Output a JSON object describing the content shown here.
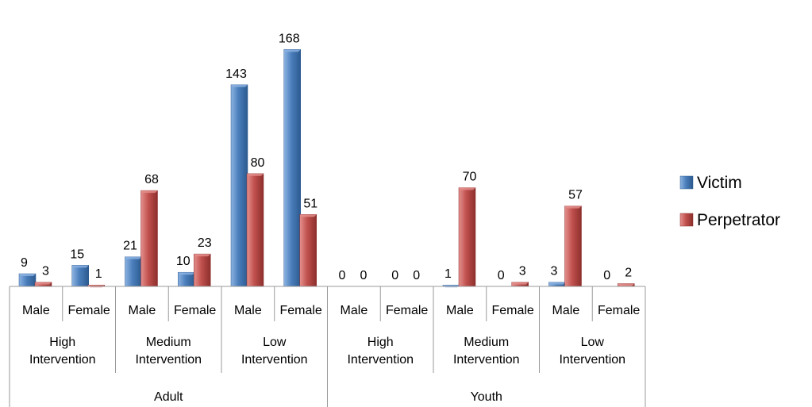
{
  "chart_data": {
    "type": "bar",
    "title": "",
    "xlabel": "",
    "ylabel": "",
    "ylim": [
      0,
      180
    ],
    "grid": false,
    "legend_position": "right",
    "categories": [
      {
        "sub": "Male",
        "level": [
          "High",
          "Intervention"
        ],
        "group": "Adult"
      },
      {
        "sub": "Female",
        "level": [
          "High",
          "Intervention"
        ],
        "group": "Adult"
      },
      {
        "sub": "Male",
        "level": [
          "Medium",
          "Intervention"
        ],
        "group": "Adult"
      },
      {
        "sub": "Female",
        "level": [
          "Medium",
          "Intervention"
        ],
        "group": "Adult"
      },
      {
        "sub": "Male",
        "level": [
          "Low",
          "Intervention"
        ],
        "group": "Adult"
      },
      {
        "sub": "Female",
        "level": [
          "Low",
          "Intervention"
        ],
        "group": "Adult"
      },
      {
        "sub": "Male",
        "level": [
          "High",
          "Intervention"
        ],
        "group": "Youth"
      },
      {
        "sub": "Female",
        "level": [
          "High",
          "Intervention"
        ],
        "group": "Youth"
      },
      {
        "sub": "Male",
        "level": [
          "Medium",
          "Intervention"
        ],
        "group": "Youth"
      },
      {
        "sub": "Female",
        "level": [
          "Medium",
          "Intervention"
        ],
        "group": "Youth"
      },
      {
        "sub": "Male",
        "level": [
          "Low",
          "Intervention"
        ],
        "group": "Youth"
      },
      {
        "sub": "Female",
        "level": [
          "Low",
          "Intervention"
        ],
        "group": "Youth"
      }
    ],
    "levels": [
      {
        "lines": [
          "High",
          "Intervention"
        ]
      },
      {
        "lines": [
          "Medium",
          "Intervention"
        ]
      },
      {
        "lines": [
          "Low",
          "Intervention"
        ]
      },
      {
        "lines": [
          "High",
          "Intervention"
        ]
      },
      {
        "lines": [
          "Medium",
          "Intervention"
        ]
      },
      {
        "lines": [
          "Low",
          "Intervention"
        ]
      }
    ],
    "groups": [
      "Adult",
      "Youth"
    ],
    "series": [
      {
        "name": "Victim",
        "color": "#4a7ebb",
        "color_light": "#8db3e2",
        "color_dark": "#2c5a8f",
        "values": [
          9,
          15,
          21,
          10,
          143,
          168,
          0,
          0,
          1,
          0,
          3,
          0
        ]
      },
      {
        "name": "Perpetrator",
        "color": "#c0504d",
        "color_light": "#e4908d",
        "color_dark": "#8c2f2c",
        "values": [
          3,
          1,
          68,
          23,
          80,
          51,
          0,
          0,
          70,
          3,
          57,
          2
        ]
      }
    ]
  }
}
